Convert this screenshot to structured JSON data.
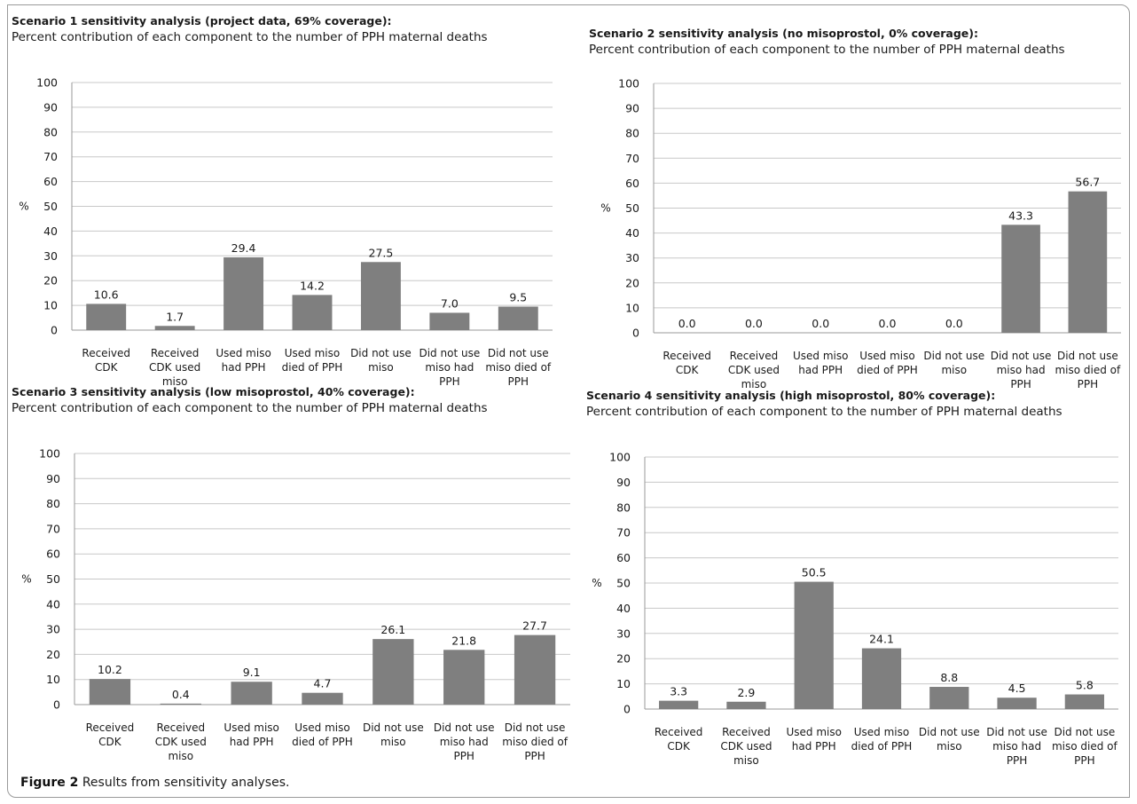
{
  "figure": {
    "caption_label": "Figure 2",
    "caption_text": "Results from sensitivity analyses."
  },
  "colors": {
    "bar": "#7f7f7f",
    "grid": "#c8c8c8",
    "axis": "#9a9a9a"
  },
  "chart_data": [
    {
      "type": "bar",
      "title": "Scenario 1 sensitivity analysis (project data, 69% coverage):",
      "subtitle": "Percent contribution of each component to the number of PPH maternal deaths",
      "ylabel": "%",
      "ylim": [
        0,
        100
      ],
      "yticks": [
        0,
        10,
        20,
        30,
        40,
        50,
        60,
        70,
        80,
        90,
        100
      ],
      "grid": true,
      "categories": [
        [
          "Received",
          "CDK"
        ],
        [
          "Received",
          "CDK used",
          "miso"
        ],
        [
          "Used miso",
          "had PPH"
        ],
        [
          "Used miso",
          "died of PPH"
        ],
        [
          "Did not use",
          "miso"
        ],
        [
          "Did not use",
          "miso had",
          "PPH"
        ],
        [
          "Did not use",
          "miso died of",
          "PPH"
        ]
      ],
      "values": [
        10.6,
        1.7,
        29.4,
        14.2,
        27.5,
        7.0,
        9.5
      ],
      "labels": [
        "10.6",
        "1.7",
        "29.4",
        "14.2",
        "27.5",
        "7.0",
        "9.5"
      ]
    },
    {
      "type": "bar",
      "title": "Scenario 2 sensitivity analysis (no misoprostol, 0% coverage):",
      "subtitle": "Percent contribution of each component to the number of PPH maternal deaths",
      "ylabel": "%",
      "ylim": [
        0,
        100
      ],
      "yticks": [
        0,
        10,
        20,
        30,
        40,
        50,
        60,
        70,
        80,
        90,
        100
      ],
      "grid": true,
      "categories": [
        [
          "Received",
          "CDK"
        ],
        [
          "Received",
          "CDK used",
          "miso"
        ],
        [
          "Used miso",
          "had PPH"
        ],
        [
          "Used miso",
          "died of PPH"
        ],
        [
          "Did not use",
          "miso"
        ],
        [
          "Did not use",
          "miso had",
          "PPH"
        ],
        [
          "Did not use",
          "miso died of",
          "PPH"
        ]
      ],
      "values": [
        0.0,
        0.0,
        0.0,
        0.0,
        0.0,
        43.3,
        56.7
      ],
      "labels": [
        "0.0",
        "0.0",
        "0.0",
        "0.0",
        "0.0",
        "43.3",
        "56.7"
      ]
    },
    {
      "type": "bar",
      "title": "Scenario 3 sensitivity analysis (low misoprostol, 40% coverage):",
      "subtitle": "Percent contribution of each component to the number of PPH maternal deaths",
      "ylabel": "%",
      "ylim": [
        0,
        100
      ],
      "yticks": [
        0,
        10,
        20,
        30,
        40,
        50,
        60,
        70,
        80,
        90,
        100
      ],
      "grid": true,
      "categories": [
        [
          "Received",
          "CDK"
        ],
        [
          "Received",
          "CDK used",
          "miso"
        ],
        [
          "Used miso",
          "had PPH"
        ],
        [
          "Used miso",
          "died of PPH"
        ],
        [
          "Did not use",
          "miso"
        ],
        [
          "Did not use",
          "miso had",
          "PPH"
        ],
        [
          "Did not use",
          "miso died of",
          "PPH"
        ]
      ],
      "values": [
        10.2,
        0.4,
        9.1,
        4.7,
        26.1,
        21.8,
        27.7
      ],
      "labels": [
        "10.2",
        "0.4",
        "9.1",
        "4.7",
        "26.1",
        "21.8",
        "27.7"
      ]
    },
    {
      "type": "bar",
      "title": "Scenario 4 sensitivity analysis (high misoprostol, 80% coverage):",
      "subtitle": "Percent contribution of each component to the number of PPH maternal deaths",
      "ylabel": "%",
      "ylim": [
        0,
        100
      ],
      "yticks": [
        0,
        10,
        20,
        30,
        40,
        50,
        60,
        70,
        80,
        90,
        100
      ],
      "grid": true,
      "categories": [
        [
          "Received",
          "CDK"
        ],
        [
          "Received",
          "CDK used",
          "miso"
        ],
        [
          "Used miso",
          "had PPH"
        ],
        [
          "Used miso",
          "died of PPH"
        ],
        [
          "Did not use",
          "miso"
        ],
        [
          "Did not use",
          "miso had",
          "PPH"
        ],
        [
          "Did not use",
          "miso died of",
          "PPH"
        ]
      ],
      "values": [
        3.3,
        2.9,
        50.5,
        24.1,
        8.8,
        4.5,
        5.8
      ],
      "labels": [
        "3.3",
        "2.9",
        "50.5",
        "24.1",
        "8.8",
        "4.5",
        "5.8"
      ]
    }
  ]
}
